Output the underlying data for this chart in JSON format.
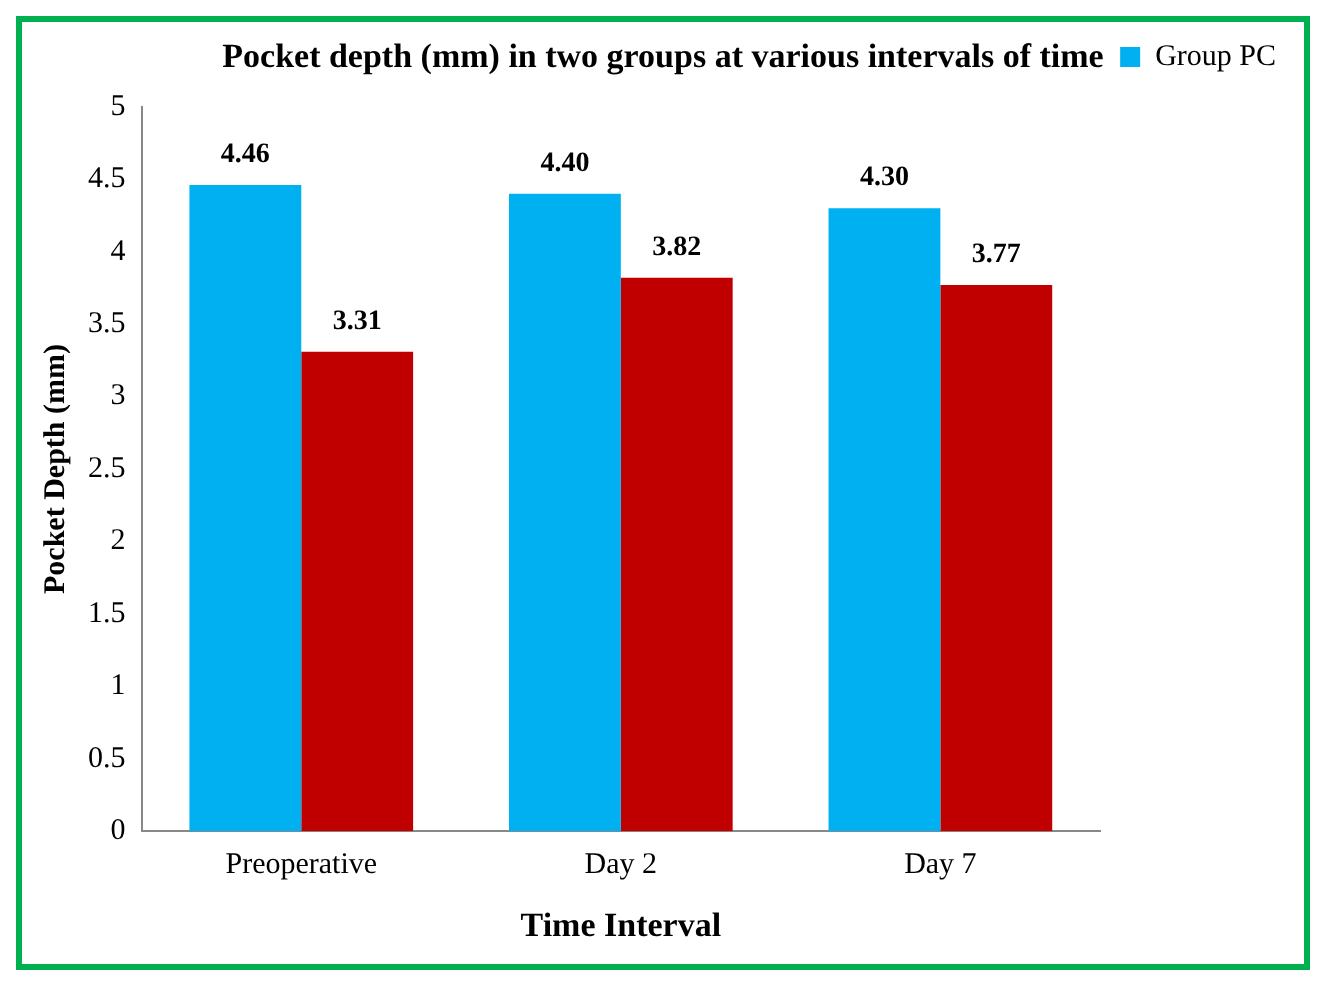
{
  "chart_data": {
    "type": "bar",
    "title": "Pocket depth (mm) in two groups at various intervals of time",
    "xlabel": "Time Interval",
    "ylabel": "Pocket Depth (mm)",
    "categories": [
      "Preoperative",
      "Day 2",
      "Day 7"
    ],
    "series": [
      {
        "name": "Group PC",
        "color": "#00b0f0",
        "values": [
          4.46,
          4.4,
          4.3
        ],
        "value_labels": [
          "4.46",
          "4.40",
          "4.30"
        ]
      },
      {
        "color": "#c00000",
        "values": [
          3.31,
          3.82,
          3.77
        ],
        "value_labels": [
          "3.31",
          "3.82",
          "3.77"
        ]
      }
    ],
    "ylim": [
      0,
      5
    ],
    "yticks": [
      0,
      0.5,
      1,
      1.5,
      2,
      2.5,
      3,
      3.5,
      4,
      4.5,
      5
    ],
    "grid": false,
    "legend": "top right"
  }
}
